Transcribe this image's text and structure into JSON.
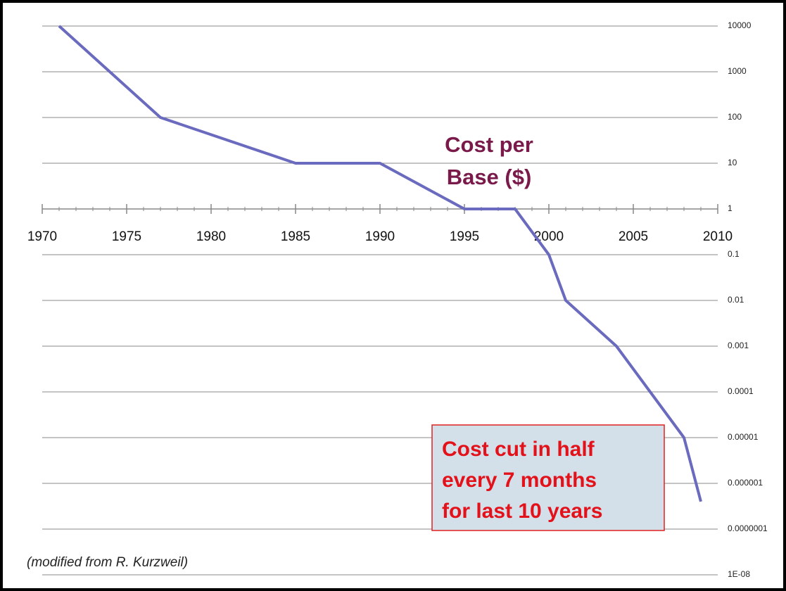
{
  "chart_data": {
    "type": "line",
    "log_y": true,
    "grid": true,
    "title_lines": [
      "Cost per",
      "Base ($)"
    ],
    "callout_lines": [
      "Cost cut in half",
      "every 7 months",
      "for last 10 years"
    ],
    "credit": "(modified from R. Kurzweil)",
    "xlim": [
      1970,
      2010
    ],
    "xticks": [
      1970,
      1975,
      1980,
      1985,
      1990,
      1995,
      2000,
      2005,
      2010
    ],
    "ylim": [
      1e-08,
      10000
    ],
    "yticks": [
      10000,
      1000,
      100,
      10,
      1,
      0.1,
      0.01,
      0.001,
      0.0001,
      1e-05,
      1e-06,
      {
        "value": 1e-07,
        "label": "0.0000001"
      },
      {
        "value": 1e-08,
        "label": "1E-08"
      }
    ],
    "series": [
      {
        "color": "#6a6abf",
        "x": [
          1971,
          1977,
          1985,
          1990,
          1995,
          1998,
          2000,
          2001,
          2004,
          2008,
          2009
        ],
        "values": [
          10000,
          100,
          10,
          10,
          1,
          1,
          0.1,
          0.01,
          0.001,
          1e-05,
          4e-07
        ]
      }
    ]
  }
}
